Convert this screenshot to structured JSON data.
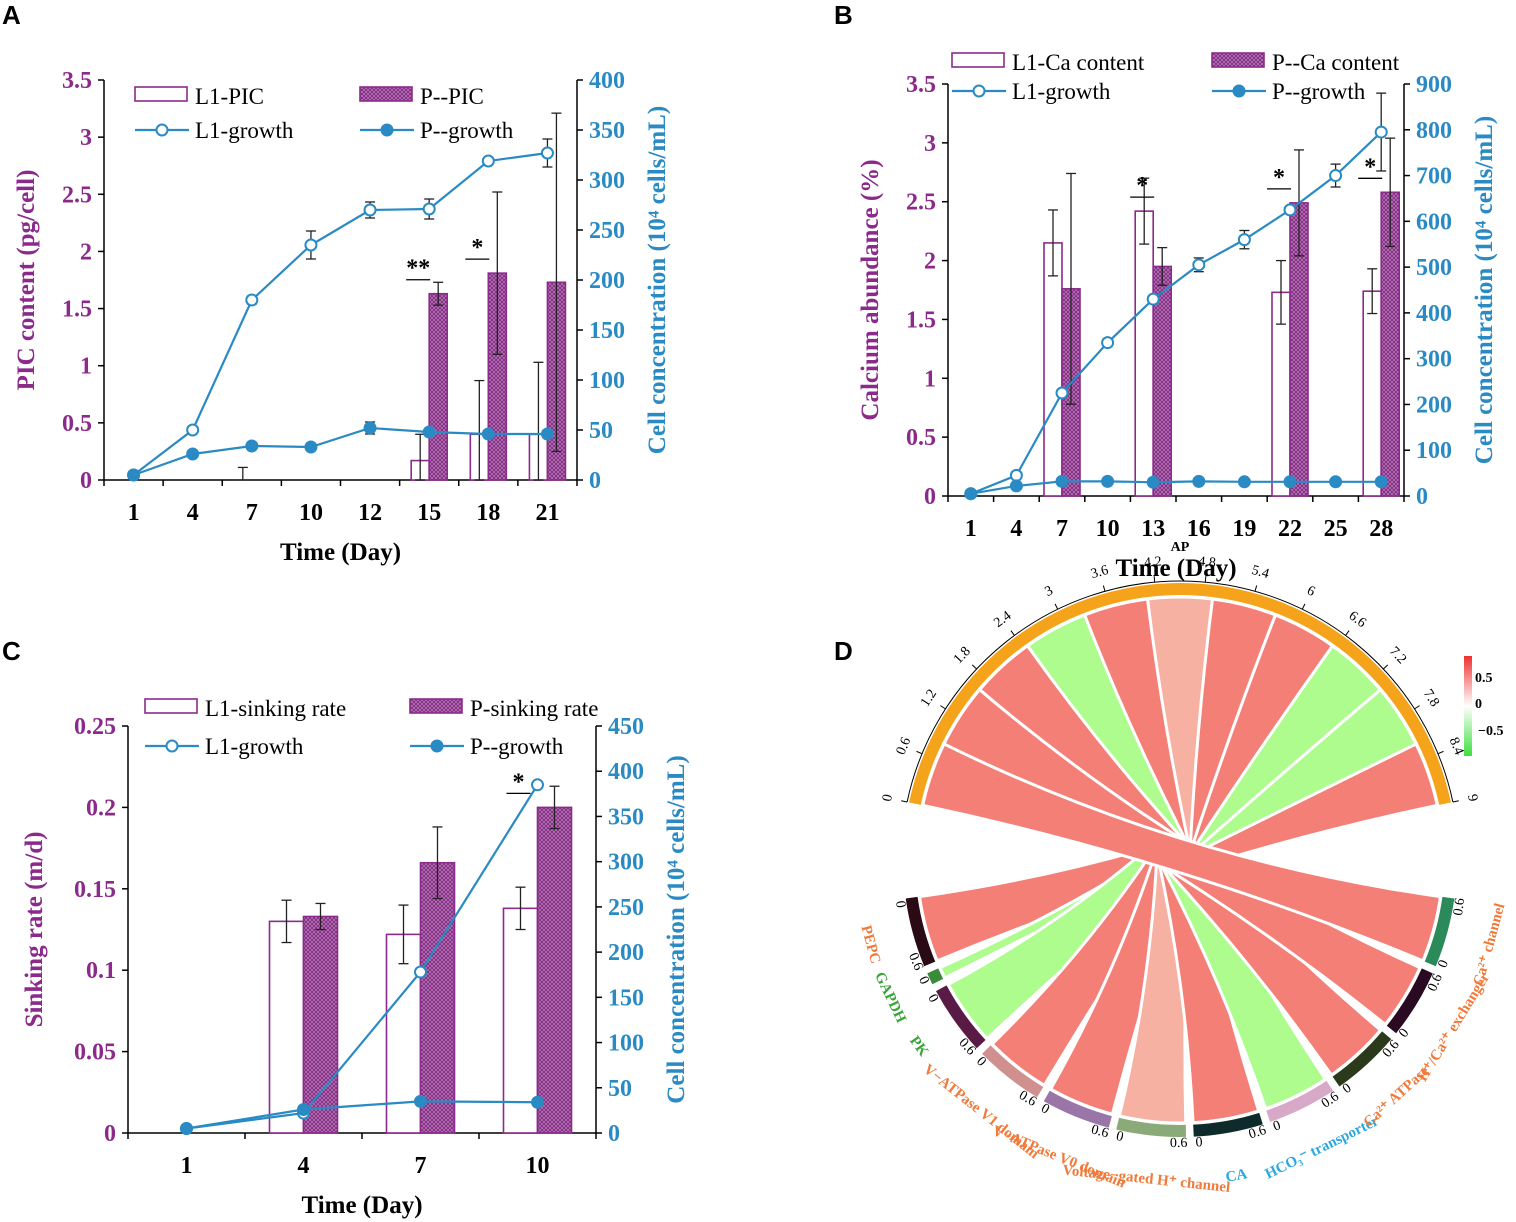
{
  "colors": {
    "purple": "#8c2a8c",
    "blue": "#2a8ac4",
    "orange": "#f5a31a",
    "red_chord": "#f47f77",
    "light_red_chord": "#f6b1a2",
    "green_chord": "#aefc8e",
    "gene_orange": "#f07a3a",
    "gene_green": "#3aa63a",
    "gene_blue": "#2aa8e0"
  },
  "chart_data": [
    {
      "panel": "A",
      "type": "bar+line",
      "xlabel": "Time (Day)",
      "ylabel_left": "PIC content (pg/cell)",
      "ylabel_right": "Cell concentration (10⁴ cells/mL)",
      "ylim_left": [
        0,
        3.5
      ],
      "ylim_right": [
        0,
        400
      ],
      "left_ticks": [
        "0",
        "0.5",
        "1",
        "1.5",
        "2",
        "2.5",
        "3",
        "3.5"
      ],
      "right_ticks": [
        "0",
        "50",
        "100",
        "150",
        "200",
        "250",
        "300",
        "350",
        "400"
      ],
      "categories": [
        "1",
        "4",
        "7",
        "10",
        "12",
        "15",
        "18",
        "21"
      ],
      "legend": [
        "L1-PIC",
        "P--PIC",
        "L1-growth",
        "P--growth"
      ],
      "bars": [
        {
          "name": "L1-PIC",
          "values": [
            0,
            0,
            0,
            0,
            0,
            0.17,
            0.4,
            0.4
          ],
          "errors": [
            0,
            0,
            0.11,
            0,
            0,
            0.23,
            0.47,
            0.63
          ]
        },
        {
          "name": "P--PIC",
          "values": [
            0,
            0,
            0,
            0,
            0,
            1.63,
            1.81,
            1.73
          ],
          "errors": [
            0,
            0,
            0,
            0,
            0,
            0.1,
            0.71,
            1.48
          ]
        }
      ],
      "lines": [
        {
          "name": "L1-growth",
          "values": [
            5,
            50,
            180,
            235,
            270,
            271,
            319,
            327
          ],
          "errors": [
            0,
            0,
            4,
            14,
            8,
            10,
            0,
            14
          ]
        },
        {
          "name": "P--growth",
          "values": [
            5,
            26,
            34,
            33,
            52,
            48,
            46,
            46
          ],
          "errors": [
            0,
            0,
            0,
            0,
            6,
            0,
            0,
            0
          ]
        }
      ],
      "annotations": [
        {
          "text": "**",
          "at": "15"
        },
        {
          "text": "*",
          "at": "18"
        }
      ]
    },
    {
      "panel": "B",
      "type": "bar+line",
      "xlabel": "Time (Day)",
      "ylabel_left": "Calcium abundance (%)",
      "ylabel_right": "Cell concentration (10⁴ cells/mL)",
      "ylim_left": [
        0,
        3.5
      ],
      "ylim_right": [
        0,
        900
      ],
      "left_ticks": [
        "0",
        "0.5",
        "1",
        "1.5",
        "2",
        "2.5",
        "3",
        "3.5"
      ],
      "right_ticks": [
        "0",
        "100",
        "200",
        "300",
        "400",
        "500",
        "600",
        "700",
        "800",
        "900"
      ],
      "categories": [
        "1",
        "4",
        "7",
        "10",
        "13",
        "16",
        "19",
        "22",
        "25",
        "28"
      ],
      "legend": [
        "L1-Ca content",
        "P--Ca content",
        "L1-growth",
        "P--growth"
      ],
      "bars": [
        {
          "name": "L1-Ca content",
          "values": [
            0,
            0,
            2.15,
            0,
            2.42,
            0,
            0,
            1.73,
            0,
            1.74
          ],
          "errors": [
            0,
            0,
            0.28,
            0,
            0.28,
            0,
            0,
            0.27,
            0,
            0.19
          ]
        },
        {
          "name": "P--Ca content",
          "values": [
            0,
            0,
            1.76,
            0,
            1.95,
            0,
            0,
            2.49,
            0,
            2.58
          ],
          "errors": [
            0,
            0,
            0.98,
            0,
            0.16,
            0,
            0,
            0.45,
            0,
            0.46
          ]
        }
      ],
      "lines": [
        {
          "name": "L1-growth",
          "values": [
            5,
            45,
            225,
            335,
            430,
            505,
            560,
            625,
            700,
            795
          ],
          "errors": [
            0,
            0,
            0,
            0,
            0,
            15,
            20,
            0,
            25,
            85
          ]
        },
        {
          "name": "P--growth",
          "values": [
            5,
            22,
            32,
            32,
            30,
            32,
            31,
            31,
            31,
            31
          ],
          "errors": [
            0,
            0,
            0,
            0,
            0,
            0,
            0,
            0,
            0,
            0
          ]
        }
      ],
      "annotations": [
        {
          "text": "*",
          "at": "13"
        },
        {
          "text": "*",
          "at": "22"
        },
        {
          "text": "*",
          "at": "28"
        }
      ]
    },
    {
      "panel": "C",
      "type": "bar+line",
      "xlabel": "Time (Day)",
      "ylabel_left": "Sinking rate (m/d)",
      "ylabel_right": "Cell concentration (10⁴ cells/mL)",
      "ylim_left": [
        0,
        0.25
      ],
      "ylim_right": [
        0,
        450
      ],
      "left_ticks": [
        "0",
        "0.05",
        "0.1",
        "0.15",
        "0.2",
        "0.25"
      ],
      "right_ticks": [
        "0",
        "50",
        "100",
        "150",
        "200",
        "250",
        "300",
        "350",
        "400",
        "450"
      ],
      "categories": [
        "1",
        "4",
        "7",
        "10"
      ],
      "legend": [
        "L1-sinking rate",
        "P-sinking rate",
        "L1-growth",
        "P--growth"
      ],
      "bars": [
        {
          "name": "L1-sinking rate",
          "values": [
            0,
            0.13,
            0.122,
            0.138
          ],
          "errors": [
            0,
            0.013,
            0.018,
            0.013
          ]
        },
        {
          "name": "P-sinking rate",
          "values": [
            0,
            0.133,
            0.166,
            0.2
          ],
          "errors": [
            0,
            0.008,
            0.022,
            0.013
          ]
        }
      ],
      "lines": [
        {
          "name": "L1-growth",
          "values": [
            5,
            22,
            178,
            385
          ],
          "errors": [
            0,
            0,
            0,
            0
          ]
        },
        {
          "name": "P--growth",
          "values": [
            5,
            26,
            35,
            34
          ],
          "errors": [
            0,
            0,
            0,
            0
          ]
        }
      ],
      "annotations": [
        {
          "text": "*",
          "at": "10"
        }
      ]
    },
    {
      "panel": "D",
      "type": "chord",
      "top_label": "AP",
      "top_ticks": [
        "0",
        "0.6",
        "1.2",
        "1.8",
        "2.4",
        "3",
        "3.6",
        "4.2",
        "4.8",
        "5.4",
        "6",
        "6.6",
        "7.2",
        "7.8",
        "8.4",
        "9"
      ],
      "colorbar": {
        "labels": [
          "0.5",
          "0",
          "−0.5"
        ],
        "range": [
          -0.5,
          0.5
        ]
      },
      "genes": [
        {
          "name": "PEPC",
          "correlation": 0.5,
          "color": "#f07a3a"
        },
        {
          "name": "GAPDH",
          "correlation": -0.5,
          "color": "#3aa63a"
        },
        {
          "name": "PK",
          "correlation": -0.5,
          "color": "#3aa63a"
        },
        {
          "name": "V−ATPase V1 domain",
          "correlation": 0.5,
          "color": "#f07a3a"
        },
        {
          "name": "V−ATPase V0 domain",
          "correlation": 0.5,
          "color": "#f07a3a"
        },
        {
          "name": "Voltage−gated H⁺ channel",
          "correlation": 0.3,
          "color": "#f07a3a"
        },
        {
          "name": "CA",
          "correlation": 0.5,
          "color": "#2aa8e0"
        },
        {
          "name": "HCO₃⁻ transporter",
          "correlation": -0.5,
          "color": "#2aa8e0"
        },
        {
          "name": "Ca²⁺ ATPase",
          "correlation": 0.5,
          "color": "#f07a3a"
        },
        {
          "name": "H⁺/Ca²⁺ exchanger",
          "correlation": 0.5,
          "color": "#f07a3a"
        },
        {
          "name": "Ca²⁺ channel",
          "correlation": 0.5,
          "color": "#f07a3a"
        }
      ],
      "gene_tick_zero": "0",
      "gene_tick_six": "0.6"
    }
  ]
}
